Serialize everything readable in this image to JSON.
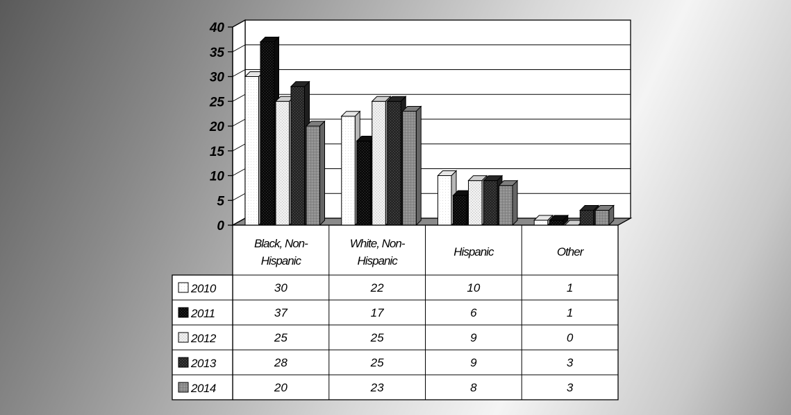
{
  "chart_data": {
    "type": "bar",
    "categories": [
      "Black, Non-Hispanic",
      "White, Non-Hispanic",
      "Hispanic",
      "Other"
    ],
    "series": [
      {
        "name": "2010",
        "values": [
          30,
          22,
          10,
          1
        ]
      },
      {
        "name": "2011",
        "values": [
          37,
          17,
          6,
          1
        ]
      },
      {
        "name": "2012",
        "values": [
          25,
          25,
          9,
          0
        ]
      },
      {
        "name": "2013",
        "values": [
          28,
          25,
          9,
          3
        ]
      },
      {
        "name": "2014",
        "values": [
          20,
          23,
          8,
          3
        ]
      }
    ],
    "yticks": [
      0,
      5,
      10,
      15,
      20,
      25,
      30,
      35,
      40
    ],
    "ylim": [
      0,
      40
    ],
    "grid": true,
    "three_d": true,
    "data_table": true,
    "legend_placement": "data-table-rows",
    "series_colors": [
      "#ffffff",
      "#111111",
      "#e6e6e6",
      "#2a2a2a",
      "#8c8c8c"
    ]
  }
}
